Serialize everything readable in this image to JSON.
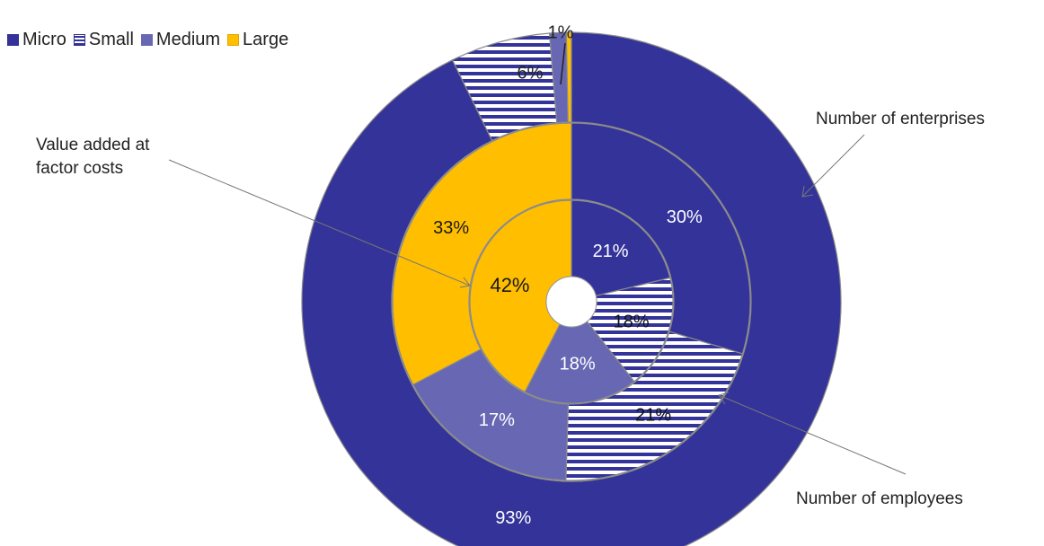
{
  "colors": {
    "Micro": "#33339a",
    "Small": "#33339a",
    "Medium": "#6767b4",
    "Large": "#ffbe00",
    "title": "#2e86c1"
  },
  "legend": [
    "Micro",
    "Small",
    "Medium",
    "Large"
  ],
  "annotations": {
    "outer": "Number  of enterprises",
    "middle": "Number  of employees",
    "inner_line1": "Value added at",
    "inner_line2": "factor costs"
  },
  "chart_data": {
    "type": "pie",
    "categories": [
      "Micro",
      "Small",
      "Medium",
      "Large"
    ],
    "series": [
      {
        "name": "Number  of enterprises",
        "values": [
          93,
          6,
          1,
          0.3
        ],
        "labels": [
          "93%",
          "6%",
          "1%",
          ""
        ]
      },
      {
        "name": "Number  of employees",
        "values": [
          30,
          21,
          17,
          33
        ],
        "labels": [
          "30%",
          "21%",
          "17%",
          "33%"
        ]
      },
      {
        "name": "Value added at factor costs",
        "values": [
          21,
          18,
          18,
          42
        ],
        "labels": [
          "21%",
          "18%",
          "18%",
          "42%"
        ]
      }
    ],
    "legend_position": "top-left",
    "start_angle": "12 o'clock, clockwise"
  }
}
